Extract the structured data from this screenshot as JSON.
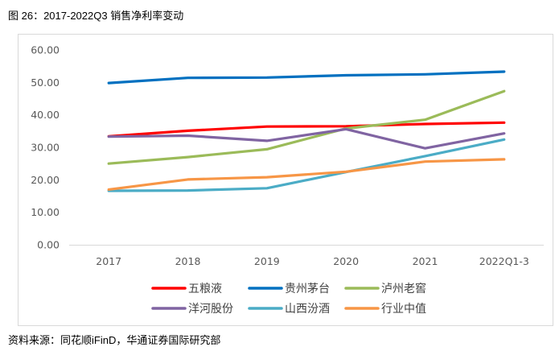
{
  "caption": "图 26：2017-2022Q3 销售净利率变动",
  "source": "资料来源：同花顺iFinD，华通证券国际研究部",
  "chart_data": {
    "type": "line",
    "title": "2017-2022Q3 销售净利率变动",
    "xlabel": "",
    "ylabel": "",
    "categories": [
      "2017",
      "2018",
      "2019",
      "2020",
      "2021",
      "2022Q1-3"
    ],
    "ylim": [
      0,
      60
    ],
    "yticks": [
      "0.00",
      "10.00",
      "20.00",
      "30.00",
      "40.00",
      "50.00",
      "60.00"
    ],
    "grid": false,
    "legend_position": "bottom",
    "series": [
      {
        "name": "五粮液",
        "color": "#ff0000",
        "values": [
          33.4,
          35.1,
          36.4,
          36.5,
          37.2,
          37.6
        ]
      },
      {
        "name": "贵州茅台",
        "color": "#0070c0",
        "values": [
          49.8,
          51.4,
          51.5,
          52.2,
          52.5,
          53.3
        ]
      },
      {
        "name": "泸州老窖",
        "color": "#9bbb59",
        "values": [
          25.0,
          27.0,
          29.4,
          35.8,
          38.5,
          47.3
        ]
      },
      {
        "name": "洋河股份",
        "color": "#8064a2",
        "values": [
          33.3,
          33.6,
          32.0,
          35.6,
          29.7,
          34.3
        ]
      },
      {
        "name": "山西汾酒",
        "color": "#4bacc6",
        "values": [
          16.6,
          16.7,
          17.4,
          22.4,
          27.3,
          32.4
        ]
      },
      {
        "name": "行业中值",
        "color": "#f79646",
        "values": [
          17.0,
          20.1,
          20.8,
          22.5,
          25.6,
          26.3
        ]
      }
    ]
  }
}
